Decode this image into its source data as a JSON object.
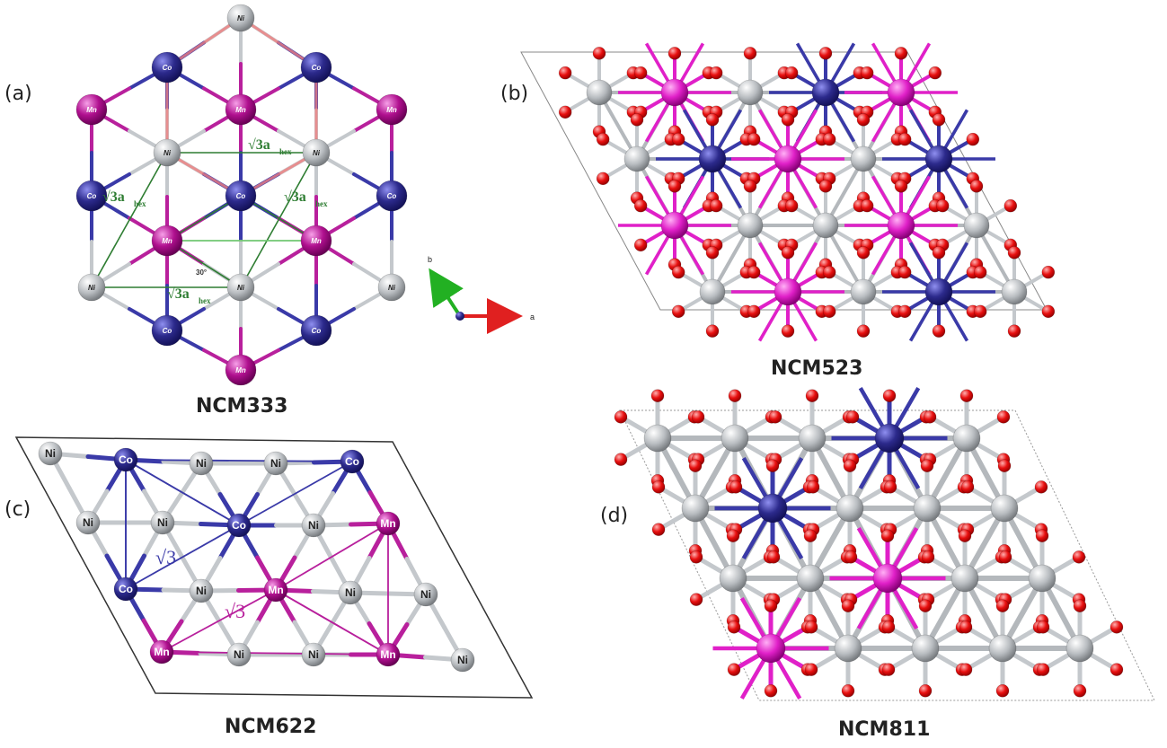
{
  "panels": {
    "a": {
      "label": "(a)",
      "caption": "NCM333",
      "axis_a": "a",
      "axis_b": "b",
      "sqrt_label": "√3a",
      "sqrt_sub": "hex",
      "angle_label": "30°"
    },
    "b": {
      "label": "(b)",
      "caption": "NCM523"
    },
    "c": {
      "label": "(c)",
      "caption": "NCM622",
      "sqrt_label": "√3"
    },
    "d": {
      "label": "(d)",
      "caption": "NCM811"
    }
  },
  "atoms": {
    "ni": "Ni",
    "co": "Co",
    "mn": "Mn"
  },
  "colors": {
    "ni": "#b8bcc0",
    "co": "#2c2a8c",
    "mn": "#b0108f",
    "o": "#e81010",
    "mn_bright": "#e020c8",
    "bond_co": "#3a3aa8",
    "bond_mn": "#b8209c",
    "green": "#2e7d32",
    "pink": "#f08080"
  }
}
